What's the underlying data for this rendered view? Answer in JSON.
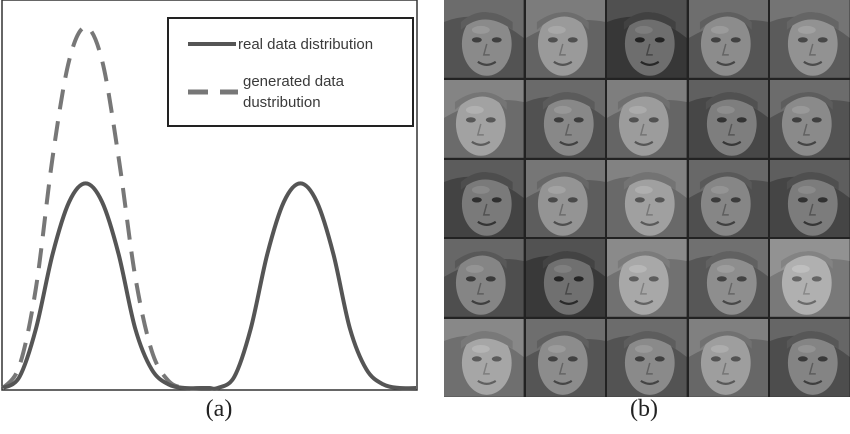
{
  "chart_data": {
    "type": "line",
    "title": "",
    "xlabel": "",
    "ylabel": "",
    "xlim": [
      0,
      1
    ],
    "ylim": [
      0,
      1
    ],
    "grid": false,
    "legend_position": "top-right",
    "series": [
      {
        "name": "real data distribution",
        "style": "solid",
        "color": "#555555",
        "x": [
          0.0,
          0.04,
          0.08,
          0.12,
          0.16,
          0.2,
          0.24,
          0.28,
          0.32,
          0.36,
          0.4,
          0.44,
          0.48,
          0.5,
          0.52,
          0.56,
          0.6,
          0.64,
          0.68,
          0.72,
          0.76,
          0.8,
          0.84,
          0.88,
          0.92,
          0.96,
          1.0
        ],
        "values": [
          0.0,
          0.03,
          0.16,
          0.36,
          0.5,
          0.55,
          0.5,
          0.36,
          0.16,
          0.05,
          0.01,
          0.0,
          0.0,
          0.0,
          0.0,
          0.03,
          0.16,
          0.36,
          0.5,
          0.55,
          0.5,
          0.36,
          0.16,
          0.05,
          0.01,
          0.0,
          0.0
        ]
      },
      {
        "name": "generated data dustribution",
        "style": "dashed",
        "color": "#777777",
        "x": [
          0.0,
          0.04,
          0.08,
          0.12,
          0.16,
          0.2,
          0.24,
          0.28,
          0.32,
          0.36,
          0.4,
          0.44,
          0.48,
          0.5
        ],
        "values": [
          0.0,
          0.06,
          0.27,
          0.62,
          0.88,
          0.97,
          0.88,
          0.62,
          0.3,
          0.1,
          0.02,
          0.0,
          0.0,
          0.0
        ]
      }
    ],
    "legend": [
      {
        "label_lines": [
          "real data distribution"
        ],
        "style": "solid"
      },
      {
        "label_lines": [
          "generated data",
          "dustribution"
        ],
        "style": "dashed"
      }
    ]
  },
  "captions": {
    "a": "(a)",
    "b": "(b)"
  },
  "face_grid": {
    "rows": 5,
    "cols": 5,
    "tones": [
      [
        "#8a8a8a",
        "#9a9a9a",
        "#6e6e6e",
        "#8c8c8c",
        "#929292"
      ],
      [
        "#a2a2a2",
        "#888888",
        "#9c9c9c",
        "#7e7e7e",
        "#8a8a8a"
      ],
      [
        "#7a7a7a",
        "#949494",
        "#a0a0a0",
        "#868686",
        "#7c7c7c"
      ],
      [
        "#858585",
        "#707070",
        "#a8a8a8",
        "#8e8e8e",
        "#b0b0b0"
      ],
      [
        "#a6a6a6",
        "#8c8c8c",
        "#8a8a8a",
        "#9e9e9e",
        "#848484"
      ]
    ]
  }
}
